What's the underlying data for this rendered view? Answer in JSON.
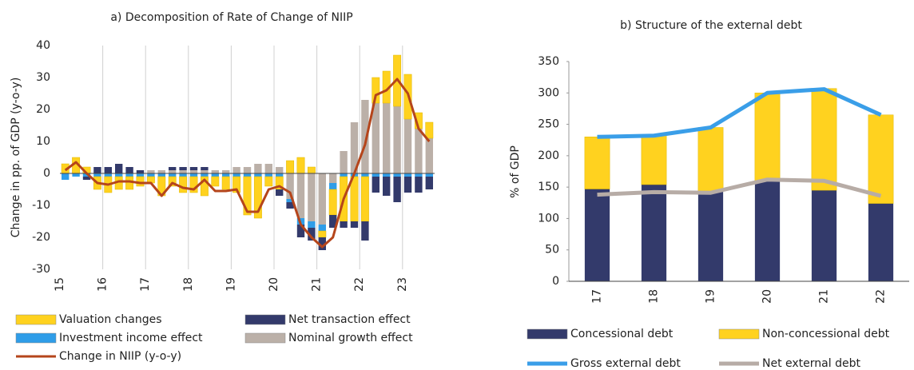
{
  "chart_data": [
    {
      "type": "bar",
      "stacked": true,
      "title": "a) Decomposition of Rate of Change of NIIP",
      "y_label": "Change in pp. of GDP (y-o-y)",
      "categories": [
        "15",
        null,
        null,
        null,
        "16",
        null,
        null,
        null,
        "17",
        null,
        null,
        null,
        "18",
        null,
        null,
        null,
        "19",
        null,
        null,
        null,
        "20",
        null,
        null,
        null,
        "21",
        null,
        null,
        null,
        "22",
        null,
        null,
        null,
        "23",
        null,
        null
      ],
      "ylim": [
        -30,
        40
      ],
      "yticks": [
        -30,
        -20,
        -10,
        0,
        10,
        20,
        30,
        40
      ],
      "xgrid": true,
      "series": [
        {
          "name": "Valuation changes",
          "color": "#ffd21f",
          "values": [
            3,
            5,
            2,
            -4,
            -5,
            -4,
            -4,
            -3,
            -2,
            -6,
            -3,
            -5,
            -5,
            -6,
            -3,
            -4,
            -5,
            -12,
            -13,
            -3,
            -4,
            4,
            5,
            2,
            -2,
            -8,
            -14,
            -14,
            -14,
            8,
            10,
            16,
            14,
            5,
            5
          ]
        },
        {
          "name": "Net transaction effect",
          "color": "#333a6b",
          "values": [
            0,
            0,
            -1,
            2,
            2,
            3,
            2,
            1,
            0,
            0,
            1,
            1,
            1,
            1,
            0,
            0,
            0,
            0,
            0,
            0,
            -2,
            -2,
            -4,
            -4,
            -4,
            -4,
            -2,
            -2,
            -6,
            -5,
            -6,
            -8,
            -5,
            -5,
            -4
          ]
        },
        {
          "name": "Investment income effect",
          "color": "#2f9de8",
          "values": [
            -2,
            -1,
            -1,
            -1,
            -1,
            -1,
            -1,
            -1,
            -1,
            -1,
            -1,
            -1,
            -1,
            -1,
            -1,
            -1,
            -1,
            -1,
            -1,
            -1,
            -1,
            -1,
            -2,
            -2,
            -2,
            -2,
            -1,
            -1,
            -1,
            -1,
            -1,
            -1,
            -1,
            -1,
            -1
          ]
        },
        {
          "name": "Nominal growth effect",
          "color": "#bbb0a8",
          "values": [
            0,
            0,
            0,
            0,
            0,
            0,
            0,
            0,
            1,
            1,
            1,
            1,
            1,
            1,
            1,
            1,
            2,
            2,
            3,
            3,
            2,
            -8,
            -14,
            -15,
            -16,
            -3,
            7,
            16,
            23,
            22,
            22,
            21,
            17,
            14,
            11
          ]
        },
        {
          "name": "Change in NIIP (y-o-y)",
          "type": "line",
          "color": "#b5451b",
          "values": [
            1,
            3.5,
            0,
            -3,
            -3.5,
            -2.5,
            -2.5,
            -3,
            -3,
            -7,
            -3,
            -4.5,
            -5,
            -2,
            -5.5,
            -5.5,
            -5,
            -12,
            -12,
            -5,
            -4,
            -6,
            -16,
            -20,
            -23,
            -20,
            -8,
            0,
            9,
            24.5,
            26,
            29.5,
            25,
            14,
            10
          ]
        }
      ]
    },
    {
      "type": "bar",
      "stacked": true,
      "title": "b) Structure of the external debt",
      "y_label": "% of GDP",
      "categories": [
        "17",
        "18",
        "19",
        "20",
        "21",
        "22"
      ],
      "ylim": [
        0,
        350
      ],
      "yticks": [
        0,
        50,
        100,
        150,
        200,
        250,
        300,
        350
      ],
      "series": [
        {
          "name": "Concessional debt",
          "color": "#333a6b",
          "values": [
            147,
            154,
            143,
            160,
            145,
            124
          ]
        },
        {
          "name": "Non-concessional debt",
          "color": "#ffd21f",
          "values": [
            83,
            78,
            102,
            140,
            162,
            141
          ]
        },
        {
          "name": "Gross external debt",
          "type": "line",
          "color": "#3a9ee8",
          "values": [
            230,
            232,
            245,
            300,
            306,
            265
          ]
        },
        {
          "name": "Net external debt",
          "type": "line",
          "color": "#b7aca6",
          "values": [
            138,
            142,
            141,
            162,
            160,
            136
          ]
        }
      ]
    }
  ]
}
